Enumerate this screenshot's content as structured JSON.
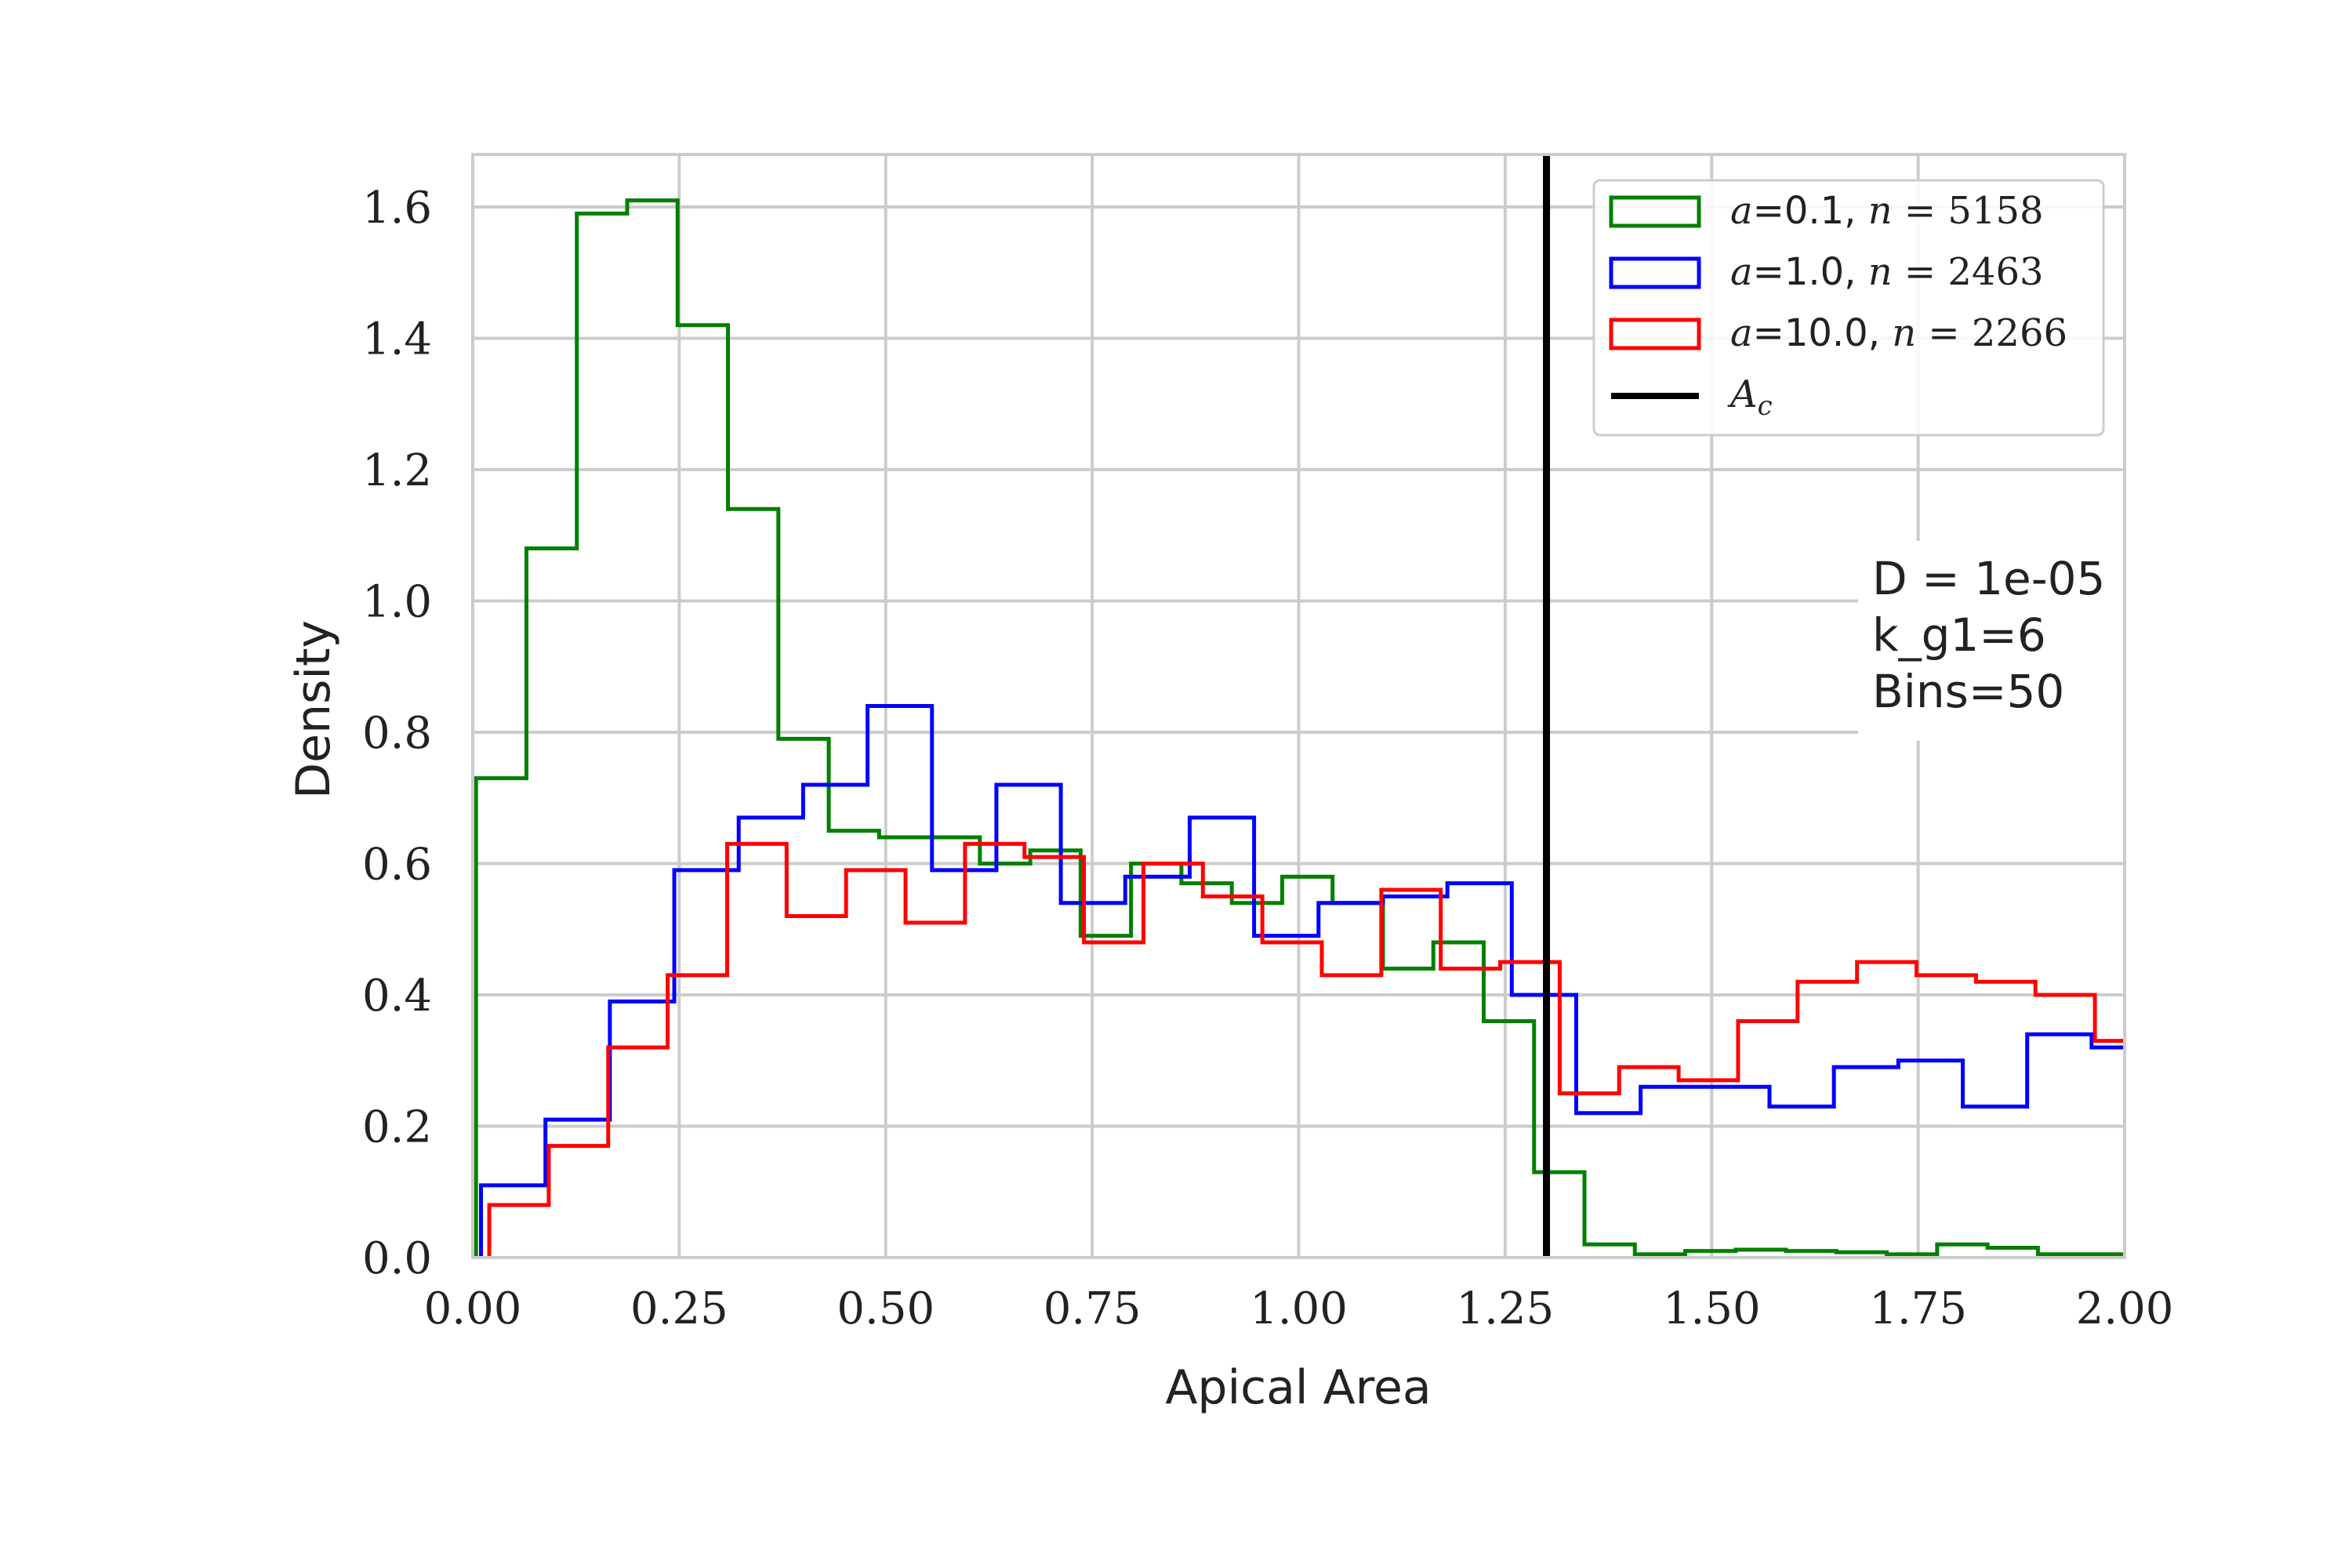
{
  "chart_data": {
    "type": "histogram",
    "xlabel": "Apical Area",
    "ylabel": "Density",
    "xlim": [
      0.0,
      2.0
    ],
    "ylim": [
      0.0,
      1.68
    ],
    "grid": true,
    "legend_position": "top-right",
    "x_ticks": [
      "0.00",
      "0.25",
      "0.50",
      "0.75",
      "1.00",
      "1.25",
      "1.50",
      "1.75",
      "2.00"
    ],
    "y_ticks": [
      "0.0",
      "0.2",
      "0.4",
      "0.6",
      "0.8",
      "1.0",
      "1.2",
      "1.4",
      "1.6"
    ],
    "series": [
      {
        "name": "a=0.1, n = 5158",
        "label_parts": [
          "a",
          "=0.1, ",
          "n",
          " = 5158"
        ],
        "color": "#008000",
        "edges": [
          0.004,
          0.065,
          0.126,
          0.187,
          0.248,
          0.309,
          0.37,
          0.431,
          0.492,
          0.553,
          0.614,
          0.675,
          0.736,
          0.797,
          0.858,
          0.919,
          0.98,
          1.041,
          1.102,
          1.163,
          1.224,
          1.285,
          1.346,
          1.407,
          1.468,
          1.529,
          1.59,
          1.651,
          1.712,
          1.773,
          1.834,
          1.895,
          1.956,
          2.0
        ],
        "values": [
          0.73,
          1.08,
          1.59,
          1.61,
          1.42,
          1.14,
          0.79,
          0.65,
          0.64,
          0.64,
          0.6,
          0.62,
          0.49,
          0.6,
          0.57,
          0.54,
          0.58,
          0.54,
          0.44,
          0.48,
          0.36,
          0.13,
          0.02,
          0.005,
          0.01,
          0.012,
          0.01,
          0.008,
          0.005,
          0.02,
          0.015,
          0.005,
          0.005
        ]
      },
      {
        "name": "a=1.0, n = 2463",
        "label_parts": [
          "a",
          "=1.0, ",
          "n",
          " = 2463"
        ],
        "color": "#0000ff",
        "edges": [
          0.01,
          0.088,
          0.166,
          0.244,
          0.322,
          0.4,
          0.478,
          0.556,
          0.634,
          0.712,
          0.79,
          0.868,
          0.946,
          1.024,
          1.102,
          1.18,
          1.258,
          1.336,
          1.414,
          1.492,
          1.57,
          1.648,
          1.726,
          1.804,
          1.882,
          1.96,
          2.0
        ],
        "values": [
          0.11,
          0.21,
          0.39,
          0.59,
          0.67,
          0.72,
          0.84,
          0.59,
          0.72,
          0.54,
          0.58,
          0.67,
          0.49,
          0.54,
          0.55,
          0.57,
          0.4,
          0.22,
          0.26,
          0.26,
          0.23,
          0.29,
          0.3,
          0.23,
          0.34,
          0.32
        ]
      },
      {
        "name": "a=10.0, n = 2266",
        "label_parts": [
          "a",
          "=10.0, ",
          "n",
          " = 2266"
        ],
        "color": "#ff0000",
        "edges": [
          0.02,
          0.092,
          0.164,
          0.236,
          0.308,
          0.38,
          0.452,
          0.524,
          0.596,
          0.668,
          0.74,
          0.812,
          0.884,
          0.956,
          1.028,
          1.1,
          1.172,
          1.244,
          1.316,
          1.388,
          1.46,
          1.532,
          1.604,
          1.676,
          1.748,
          1.82,
          1.892,
          1.964,
          2.0
        ],
        "values": [
          0.08,
          0.17,
          0.32,
          0.43,
          0.63,
          0.52,
          0.59,
          0.51,
          0.63,
          0.61,
          0.48,
          0.6,
          0.55,
          0.48,
          0.43,
          0.56,
          0.44,
          0.45,
          0.25,
          0.29,
          0.27,
          0.36,
          0.42,
          0.45,
          0.43,
          0.42,
          0.4,
          0.33
        ]
      }
    ],
    "reference_line": {
      "name": "Ac",
      "label_parts": [
        "A",
        "c"
      ],
      "x": 1.3,
      "color": "#000000"
    },
    "annotation_lines": [
      "D = 1e-05",
      "k_g1=6",
      "Bins=50"
    ]
  }
}
